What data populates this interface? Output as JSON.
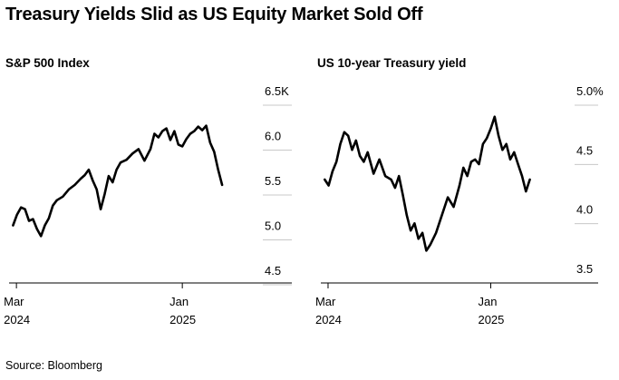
{
  "title": "Treasury Yields Slid as US Equity Market Sold Off",
  "source": "Source: Bloomberg",
  "chart_data": [
    {
      "type": "line",
      "title": "S&P 500 Index",
      "ylim": [
        4.5,
        6.5
      ],
      "yticks": [
        4.5,
        5.0,
        5.5,
        6.0,
        6.5
      ],
      "ytick_labels": [
        "4.5",
        "5.0",
        "5.5",
        "6.0",
        "6.5K"
      ],
      "xticks": [
        {
          "x": 2024.167,
          "label_top": "Mar",
          "label_bottom": "2024"
        },
        {
          "x": 2025.0,
          "label_top": "Jan",
          "label_bottom": "2025"
        }
      ],
      "xlim": [
        2024.13,
        2025.55
      ],
      "series": [
        {
          "name": "S&P 500",
          "units": "thousands",
          "x": [
            2024.15,
            2024.17,
            2024.19,
            2024.21,
            2024.23,
            2024.25,
            2024.27,
            2024.29,
            2024.31,
            2024.33,
            2024.35,
            2024.37,
            2024.4,
            2024.43,
            2024.46,
            2024.49,
            2024.51,
            2024.53,
            2024.55,
            2024.57,
            2024.59,
            2024.61,
            2024.63,
            2024.65,
            2024.67,
            2024.69,
            2024.72,
            2024.75,
            2024.78,
            2024.81,
            2024.84,
            2024.86,
            2024.88,
            2024.9,
            2024.92,
            2024.94,
            2024.96,
            2024.98,
            2025.0,
            2025.02,
            2025.04,
            2025.06,
            2025.08,
            2025.1,
            2025.12,
            2025.14,
            2025.16,
            2025.18,
            2025.2
          ],
          "values": [
            5.0,
            5.12,
            5.2,
            5.18,
            5.05,
            5.07,
            4.96,
            4.88,
            5.0,
            5.08,
            5.22,
            5.28,
            5.32,
            5.4,
            5.45,
            5.52,
            5.56,
            5.62,
            5.5,
            5.4,
            5.18,
            5.35,
            5.55,
            5.48,
            5.62,
            5.7,
            5.73,
            5.8,
            5.85,
            5.72,
            5.85,
            6.02,
            5.98,
            6.05,
            6.08,
            5.95,
            6.05,
            5.9,
            5.88,
            5.96,
            6.02,
            6.05,
            6.1,
            6.06,
            6.11,
            5.92,
            5.82,
            5.62,
            5.45
          ]
        }
      ]
    },
    {
      "type": "line",
      "title": "US 10-year Treasury yield",
      "ylim": [
        3.5,
        5.0
      ],
      "yticks": [
        3.5,
        4.0,
        4.5,
        5.0
      ],
      "ytick_labels": [
        "3.5",
        "4.0",
        "4.5",
        "5.0%"
      ],
      "xticks": [
        {
          "x": 2024.167,
          "label_top": "Mar",
          "label_bottom": "2024"
        },
        {
          "x": 2025.0,
          "label_top": "Jan",
          "label_bottom": "2025"
        }
      ],
      "xlim": [
        2024.13,
        2025.55
      ],
      "series": [
        {
          "name": "US 10-year yield",
          "units": "percent",
          "x": [
            2024.15,
            2024.17,
            2024.19,
            2024.21,
            2024.23,
            2024.25,
            2024.27,
            2024.29,
            2024.31,
            2024.33,
            2024.35,
            2024.37,
            2024.4,
            2024.43,
            2024.46,
            2024.49,
            2024.51,
            2024.53,
            2024.55,
            2024.57,
            2024.59,
            2024.61,
            2024.63,
            2024.65,
            2024.67,
            2024.69,
            2024.72,
            2024.75,
            2024.78,
            2024.81,
            2024.84,
            2024.86,
            2024.88,
            2024.9,
            2024.92,
            2024.94,
            2024.96,
            2024.98,
            2025.0,
            2025.02,
            2025.04,
            2025.06,
            2025.08,
            2025.1,
            2025.12,
            2025.14,
            2025.16,
            2025.18,
            2025.2
          ],
          "values": [
            4.25,
            4.2,
            4.32,
            4.4,
            4.55,
            4.65,
            4.62,
            4.5,
            4.58,
            4.45,
            4.4,
            4.48,
            4.3,
            4.42,
            4.28,
            4.25,
            4.18,
            4.28,
            4.12,
            3.95,
            3.82,
            3.88,
            3.75,
            3.8,
            3.65,
            3.7,
            3.8,
            3.95,
            4.1,
            4.02,
            4.2,
            4.35,
            4.28,
            4.4,
            4.42,
            4.38,
            4.55,
            4.6,
            4.68,
            4.78,
            4.62,
            4.5,
            4.55,
            4.42,
            4.48,
            4.38,
            4.28,
            4.15,
            4.25
          ]
        }
      ]
    }
  ]
}
